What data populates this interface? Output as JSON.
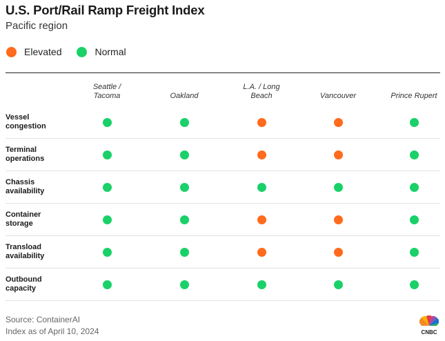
{
  "title": "U.S. Port/Rail Ramp Freight Index",
  "subtitle": "Pacific region",
  "colors": {
    "elevated": "#ff6a1c",
    "normal": "#19d168"
  },
  "legend": [
    {
      "label": "Elevated",
      "status": "elevated"
    },
    {
      "label": "Normal",
      "status": "normal"
    }
  ],
  "chart_data": {
    "type": "table",
    "columns": [
      [
        "Seattle /",
        "Tacoma"
      ],
      [
        "Oakland"
      ],
      [
        "L.A. / Long",
        "Beach"
      ],
      [
        "Vancouver"
      ],
      [
        "Prince Rupert"
      ]
    ],
    "rows": [
      {
        "label": [
          "Vessel",
          "congestion"
        ],
        "values": [
          "normal",
          "normal",
          "elevated",
          "elevated",
          "normal"
        ]
      },
      {
        "label": [
          "Terminal",
          "operations"
        ],
        "values": [
          "normal",
          "normal",
          "elevated",
          "elevated",
          "normal"
        ]
      },
      {
        "label": [
          "Chassis",
          "availability"
        ],
        "values": [
          "normal",
          "normal",
          "normal",
          "normal",
          "normal"
        ]
      },
      {
        "label": [
          "Container",
          "storage"
        ],
        "values": [
          "normal",
          "normal",
          "elevated",
          "elevated",
          "normal"
        ]
      },
      {
        "label": [
          "Transload",
          "availability"
        ],
        "values": [
          "normal",
          "normal",
          "elevated",
          "elevated",
          "normal"
        ]
      },
      {
        "label": [
          "Outbound",
          "capacity"
        ],
        "values": [
          "normal",
          "normal",
          "normal",
          "normal",
          "normal"
        ]
      }
    ]
  },
  "footer": {
    "source": "Source: ContainerAI",
    "date": "Index as of April 10, 2024"
  },
  "logo": {
    "text": "CNBC",
    "icon": "cnbc-peacock-logo"
  }
}
